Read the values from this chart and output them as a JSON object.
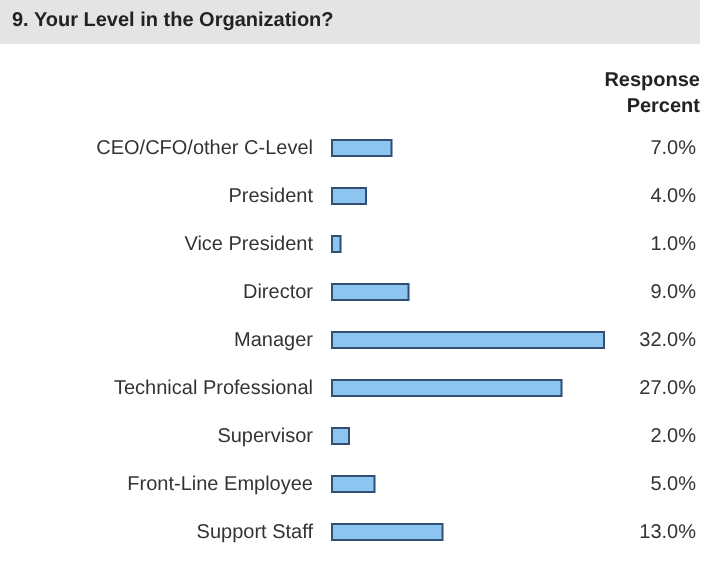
{
  "chart_data": {
    "type": "bar",
    "orientation": "horizontal",
    "title": "9. Your Level in the Organization?",
    "annotations": [
      "Response Percent"
    ],
    "categories": [
      "CEO/CFO/other C-Level",
      "President",
      "Vice President",
      "Director",
      "Manager",
      "Technical Professional",
      "Supervisor",
      "Front-Line Employee",
      "Support Staff"
    ],
    "values": [
      7.0,
      4.0,
      1.0,
      9.0,
      32.0,
      27.0,
      2.0,
      5.0,
      13.0
    ],
    "value_labels": [
      "7.0%",
      "4.0%",
      "1.0%",
      "9.0%",
      "32.0%",
      "27.0%",
      "2.0%",
      "5.0%",
      "13.0%"
    ],
    "color": "#8ec4f0"
  }
}
